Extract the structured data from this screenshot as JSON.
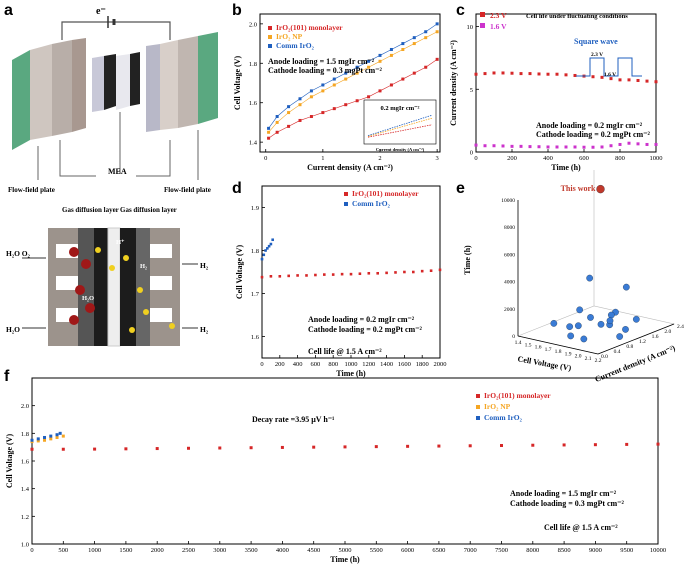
{
  "panels": {
    "a": {
      "letter": "a",
      "electron_label": "e⁻",
      "mea_label": "MEA",
      "flow_field_left": "Flow-field plate",
      "flow_field_right": "Flow-field plate",
      "gdl_left": "Gas diffusion layer",
      "gdl_right": "Gas diffusion layer",
      "h2o_o2": "H₂O O₂",
      "h2o": "H₂O",
      "h2_top": "H₂",
      "h2_bottom": "H₂",
      "h_plus": "H⁺",
      "h2o_mid": "H₂O",
      "h2_mid": "H₂"
    },
    "b": {
      "letter": "b"
    },
    "c": {
      "letter": "c"
    },
    "d": {
      "letter": "d"
    },
    "e": {
      "letter": "e"
    },
    "f": {
      "letter": "f"
    }
  },
  "colors": {
    "red": "#d62728",
    "orange": "#f5a623",
    "blue": "#1f5fbf",
    "magenta": "#cc33cc",
    "sphere_blue": "#3a7bd5",
    "sphere_red": "#c0392b"
  },
  "chart_data": [
    {
      "id": "b",
      "type": "line",
      "xlabel": "Current density (A cm⁻²)",
      "ylabel": "Cell Voltage (V)",
      "xlim": [
        -0.1,
        3.05
      ],
      "ylim": [
        1.35,
        2.05
      ],
      "xticks": [
        "0",
        "1",
        "2",
        "3"
      ],
      "yticks": [
        "1.4",
        "1.6",
        "1.8",
        "2.0"
      ],
      "annotations": [
        "Anode loading = 1.5 mgIr cm⁻²",
        "Cathode loading = 0.3 mgPt cm⁻²"
      ],
      "series": [
        {
          "name": "IrO₂(101) monolayer",
          "color": "#d62728",
          "x": [
            0.05,
            0.2,
            0.4,
            0.6,
            0.8,
            1.0,
            1.2,
            1.4,
            1.6,
            1.8,
            2.0,
            2.2,
            2.4,
            2.6,
            2.8,
            3.0
          ],
          "y": [
            1.42,
            1.45,
            1.48,
            1.51,
            1.53,
            1.55,
            1.57,
            1.59,
            1.61,
            1.63,
            1.66,
            1.69,
            1.72,
            1.75,
            1.78,
            1.82
          ]
        },
        {
          "name": "IrO₂ NP",
          "color": "#f5a623",
          "x": [
            0.05,
            0.2,
            0.4,
            0.6,
            0.8,
            1.0,
            1.2,
            1.4,
            1.6,
            1.8,
            2.0,
            2.2,
            2.4,
            2.6,
            2.8,
            3.0
          ],
          "y": [
            1.45,
            1.5,
            1.55,
            1.59,
            1.63,
            1.66,
            1.69,
            1.72,
            1.75,
            1.78,
            1.81,
            1.84,
            1.87,
            1.9,
            1.93,
            1.96
          ]
        },
        {
          "name": "Comm IrO₂",
          "color": "#1f5fbf",
          "x": [
            0.05,
            0.2,
            0.4,
            0.6,
            0.8,
            1.0,
            1.2,
            1.4,
            1.6,
            1.8,
            2.0,
            2.2,
            2.4,
            2.6,
            2.8,
            3.0
          ],
          "y": [
            1.47,
            1.53,
            1.58,
            1.62,
            1.66,
            1.69,
            1.72,
            1.75,
            1.78,
            1.81,
            1.84,
            1.87,
            1.9,
            1.93,
            1.96,
            2.0
          ]
        }
      ],
      "inset": {
        "label": "0.2 mgIr cm⁻²",
        "xlabel": "Current density (A cm⁻²)",
        "ylabel": "Cell Voltage",
        "xticks": [
          "0.0",
          "0.5",
          "1.0",
          "1.5",
          "2.0",
          "2.5",
          "3.0"
        ],
        "yticks": [
          "1.4",
          "1.5",
          "1.6",
          "1.7",
          "1.8",
          "1.9",
          "2.0",
          "2.1"
        ]
      }
    },
    {
      "id": "c",
      "type": "scatter",
      "title": "Cell life under fluctuating conditions",
      "xlabel": "Time (h)",
      "ylabel": "Current density (A cm⁻²)",
      "xlim": [
        0,
        1000
      ],
      "ylim": [
        0,
        11
      ],
      "xticks": [
        "0",
        "200",
        "400",
        "600",
        "800",
        "1000"
      ],
      "yticks": [
        "0",
        "5",
        "10"
      ],
      "square_wave_label": "Square wave",
      "wave_high": "2.3 V",
      "wave_low": "1.6 V",
      "annotations": [
        "Anode loading = 0.2 mgIr cm⁻²",
        "Cathode loading = 0.2 mgPt cm⁻²"
      ],
      "series": [
        {
          "name": "2.3 V",
          "color": "#d62728",
          "x": [
            0,
            50,
            100,
            150,
            200,
            250,
            300,
            350,
            400,
            450,
            500,
            550,
            600,
            650,
            700,
            750,
            800,
            850,
            900,
            950,
            1000
          ],
          "y": [
            6.2,
            6.25,
            6.3,
            6.3,
            6.28,
            6.25,
            6.25,
            6.22,
            6.2,
            6.2,
            6.15,
            6.1,
            6.05,
            6.0,
            5.95,
            5.85,
            5.75,
            5.75,
            5.7,
            5.65,
            5.6
          ]
        },
        {
          "name": "1.6 V",
          "color": "#cc33cc",
          "x": [
            0,
            50,
            100,
            150,
            200,
            250,
            300,
            350,
            400,
            450,
            500,
            550,
            600,
            650,
            700,
            750,
            800,
            850,
            900,
            950,
            1000
          ],
          "y": [
            0.55,
            0.5,
            0.5,
            0.48,
            0.45,
            0.45,
            0.43,
            0.42,
            0.4,
            0.4,
            0.4,
            0.4,
            0.38,
            0.38,
            0.4,
            0.5,
            0.6,
            0.7,
            0.65,
            0.6,
            0.6
          ]
        }
      ]
    },
    {
      "id": "d",
      "type": "scatter",
      "xlabel": "Time (h)",
      "ylabel": "Cell Voltage (V)",
      "xlim": [
        0,
        2000
      ],
      "ylim": [
        1.55,
        1.95
      ],
      "xticks": [
        "0",
        "200",
        "400",
        "600",
        "800",
        "1000",
        "1200",
        "1400",
        "1600",
        "1800",
        "2000"
      ],
      "yticks": [
        "1.6",
        "1.7",
        "1.8",
        "1.9"
      ],
      "annotations": [
        "Anode loading = 0.2 mgIr cm⁻²",
        "Cathode loading = 0.2 mgPt cm⁻²",
        "Cell life @ 1.5 A cm⁻²"
      ],
      "series": [
        {
          "name": "IrO₂(101) monolayer",
          "color": "#d62728",
          "x": [
            0,
            100,
            200,
            300,
            400,
            500,
            600,
            700,
            800,
            900,
            1000,
            1100,
            1200,
            1300,
            1400,
            1500,
            1600,
            1700,
            1800,
            1900,
            2000
          ],
          "y": [
            1.738,
            1.74,
            1.74,
            1.741,
            1.742,
            1.742,
            1.743,
            1.744,
            1.744,
            1.745,
            1.745,
            1.746,
            1.747,
            1.747,
            1.748,
            1.749,
            1.75,
            1.75,
            1.752,
            1.753,
            1.755
          ]
        },
        {
          "name": "Comm IrO₂",
          "color": "#1f5fbf",
          "x": [
            0,
            20,
            40,
            60,
            80,
            100,
            120
          ],
          "y": [
            1.78,
            1.79,
            1.8,
            1.805,
            1.81,
            1.815,
            1.825
          ]
        }
      ]
    },
    {
      "id": "e",
      "type": "scatter",
      "xlabel": "Cell Voltage (V)",
      "ylabel": "Time (h)",
      "zlabel": "Current density (A cm⁻²)",
      "highlight_label": "This work",
      "xticks": [
        "1.4",
        "1.5",
        "1.6",
        "1.7",
        "1.8",
        "1.9",
        "2.0",
        "2.1",
        "2.2"
      ],
      "yticks": [
        "0",
        "2000",
        "4000",
        "6000",
        "8000",
        "10000"
      ],
      "zticks": [
        "0.0",
        "0.4",
        "0.8",
        "1.2",
        "1.6",
        "2.0",
        "2.4"
      ],
      "points": [
        {
          "voltage": 1.75,
          "current": 1.5,
          "time": 10000,
          "highlight": true
        },
        {
          "voltage": 1.8,
          "current": 1.0,
          "time": 4000
        },
        {
          "voltage": 1.85,
          "current": 2.0,
          "time": 2500
        },
        {
          "voltage": 1.7,
          "current": 1.0,
          "time": 1500
        },
        {
          "voltage": 1.9,
          "current": 1.5,
          "time": 1200
        },
        {
          "voltage": 1.6,
          "current": 0.5,
          "time": 800
        },
        {
          "voltage": 2.0,
          "current": 1.0,
          "time": 900
        },
        {
          "voltage": 1.75,
          "current": 0.8,
          "time": 600
        },
        {
          "voltage": 1.85,
          "current": 1.2,
          "time": 500
        },
        {
          "voltage": 1.65,
          "current": 1.5,
          "time": 400
        },
        {
          "voltage": 1.95,
          "current": 2.0,
          "time": 300
        },
        {
          "voltage": 1.8,
          "current": 0.4,
          "time": 300
        },
        {
          "voltage": 2.1,
          "current": 1.0,
          "time": 200
        },
        {
          "voltage": 1.7,
          "current": 2.0,
          "time": 200
        },
        {
          "voltage": 1.9,
          "current": 0.5,
          "time": 150
        },
        {
          "voltage": 2.0,
          "current": 1.5,
          "time": 100
        },
        {
          "voltage": 1.6,
          "current": 1.0,
          "time": 100
        },
        {
          "voltage": 1.75,
          "current": 1.8,
          "time": 50
        }
      ]
    },
    {
      "id": "f",
      "type": "scatter",
      "xlabel": "Time (h)",
      "ylabel": "Cell Voltage (V)",
      "xlim": [
        0,
        10000
      ],
      "ylim": [
        1.0,
        2.2
      ],
      "xticks": [
        "0",
        "500",
        "1000",
        "1500",
        "2000",
        "2500",
        "3000",
        "3500",
        "4000",
        "4500",
        "5000",
        "5500",
        "6000",
        "6500",
        "7000",
        "7500",
        "8000",
        "8500",
        "9000",
        "9500",
        "10000"
      ],
      "yticks": [
        "1.0",
        "1.2",
        "1.4",
        "1.6",
        "1.8",
        "2.0"
      ],
      "decay_label": "Decay rate =3.95 μV h⁻¹",
      "annotations": [
        "Anode loading = 1.5 mgIr cm⁻²",
        "Cathode loading = 0.3 mgPt cm⁻²",
        "Cell life @ 1.5 A cm⁻²"
      ],
      "series": [
        {
          "name": "IrO₂(101) monolayer",
          "color": "#d62728",
          "x": [
            0,
            500,
            1000,
            1500,
            2000,
            2500,
            3000,
            3500,
            4000,
            4500,
            5000,
            5500,
            6000,
            6500,
            7000,
            7500,
            8000,
            8500,
            9000,
            9500,
            10000
          ],
          "y": [
            1.685,
            1.685,
            1.686,
            1.688,
            1.69,
            1.692,
            1.694,
            1.696,
            1.698,
            1.7,
            1.702,
            1.704,
            1.706,
            1.708,
            1.71,
            1.712,
            1.714,
            1.716,
            1.718,
            1.72,
            1.722
          ]
        },
        {
          "name": "IrO₂ NP",
          "color": "#f5a623",
          "x": [
            0,
            100,
            200,
            300,
            400,
            500
          ],
          "y": [
            1.74,
            1.745,
            1.75,
            1.76,
            1.77,
            1.78
          ]
        },
        {
          "name": "Comm IrO₂",
          "color": "#1f5fbf",
          "x": [
            0,
            100,
            200,
            300,
            400,
            450
          ],
          "y": [
            1.75,
            1.76,
            1.77,
            1.78,
            1.79,
            1.8
          ]
        }
      ]
    }
  ]
}
